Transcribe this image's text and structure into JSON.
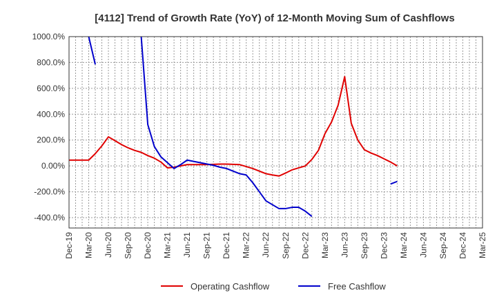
{
  "chart_data": {
    "type": "line",
    "title": "[4112]  Trend of Growth Rate (YoY) of 12-Month Moving Sum of Cashflows",
    "xlabel": "",
    "ylabel": "",
    "ylim": [
      -480,
      1000
    ],
    "y_ticks": [
      1000,
      800,
      600,
      400,
      200,
      0,
      -200,
      -400
    ],
    "y_tick_labels": [
      "1000.0%",
      "800.0%",
      "600.0%",
      "400.0%",
      "200.0%",
      "0.00%",
      "-200.0%",
      "-400.0%"
    ],
    "x_tick_labels": [
      "Dec-19",
      "Mar-20",
      "Jun-20",
      "Sep-20",
      "Dec-20",
      "Mar-21",
      "Jun-21",
      "Sep-21",
      "Dec-21",
      "Mar-22",
      "Jun-22",
      "Sep-22",
      "Dec-22",
      "Mar-23",
      "Jun-23",
      "Sep-23",
      "Dec-23",
      "Mar-24",
      "Jun-24",
      "Sep-24",
      "Dec-24",
      "Mar-25"
    ],
    "grid": true,
    "legend": "bottom",
    "series": [
      {
        "name": "Operating Cashflow",
        "color": "#e00000",
        "values": [
          45,
          45,
          45,
          45,
          95,
          155,
          225,
          195,
          165,
          140,
          120,
          105,
          80,
          60,
          30,
          -15,
          -10,
          0,
          10,
          10,
          10,
          10,
          12,
          14,
          14,
          12,
          10,
          -5,
          -20,
          -40,
          -60,
          -70,
          -78,
          -55,
          -30,
          -15,
          0,
          50,
          120,
          250,
          340,
          470,
          690,
          330,
          200,
          125,
          100,
          80,
          55,
          30,
          0
        ]
      },
      {
        "name": "Free Cashflow",
        "color": "#0000cc",
        "values": [
          null,
          null,
          null,
          1000,
          785,
          null,
          null,
          null,
          null,
          null,
          null,
          1000,
          320,
          150,
          70,
          25,
          -20,
          10,
          45,
          35,
          25,
          15,
          5,
          -10,
          -20,
          -40,
          -60,
          -70,
          -130,
          -200,
          -270,
          -300,
          -330,
          -330,
          -320,
          -320,
          -350,
          -390,
          null,
          null,
          null,
          null,
          null,
          null,
          null,
          null,
          null,
          null,
          null,
          -140,
          -120
        ]
      }
    ]
  }
}
